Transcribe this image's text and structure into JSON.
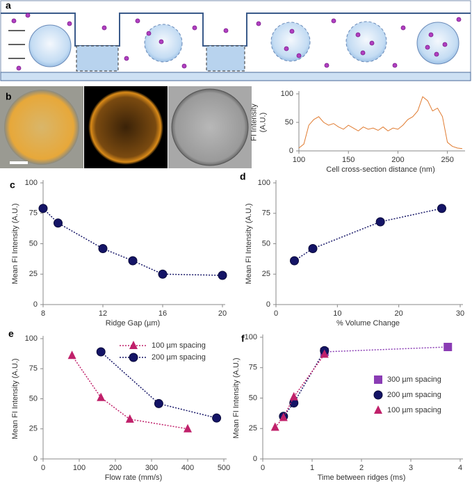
{
  "diagram": {
    "panel": "a"
  },
  "chart_data": [
    {
      "type": "line",
      "panel": "b",
      "ylabel": [
        "FI Intensity",
        "(A.U.)"
      ],
      "xlabel": "Cell cross-section distance (nm)",
      "xlim": [
        100,
        265
      ],
      "ylim": [
        0,
        100
      ],
      "xticks": [
        100,
        150,
        200,
        250
      ],
      "yticks": [
        0,
        50,
        100
      ],
      "series": [
        {
          "color": "#e07b30",
          "marker": "none",
          "x": [
            100,
            105,
            110,
            115,
            120,
            125,
            130,
            135,
            140,
            145,
            150,
            155,
            160,
            165,
            170,
            175,
            180,
            185,
            190,
            195,
            200,
            205,
            210,
            215,
            220,
            225,
            230,
            235,
            240,
            245,
            250,
            255,
            260,
            265
          ],
          "values": [
            5,
            12,
            45,
            55,
            60,
            50,
            45,
            48,
            42,
            38,
            45,
            40,
            35,
            42,
            38,
            40,
            36,
            42,
            35,
            40,
            38,
            45,
            55,
            60,
            70,
            95,
            88,
            70,
            75,
            60,
            15,
            8,
            5,
            4
          ]
        }
      ]
    },
    {
      "type": "line",
      "panel": "c",
      "ylabel": [
        "Mean FI Intensity (A.U.)"
      ],
      "xlabel": "Ridge Gap (µm)",
      "xlim": [
        8,
        20
      ],
      "ylim": [
        0,
        100
      ],
      "xticks": [
        8,
        12,
        16,
        20
      ],
      "yticks": [
        0,
        25,
        50,
        75,
        100
      ],
      "series": [
        {
          "color": "#141466",
          "marker": "circle",
          "x": [
            8,
            9,
            12,
            14,
            16,
            20
          ],
          "values": [
            79,
            67,
            46,
            36,
            25,
            24
          ]
        }
      ]
    },
    {
      "type": "line",
      "panel": "d",
      "ylabel": [
        "Mean FI Intensity (A.U.)"
      ],
      "xlabel": "% Volume Change",
      "xlim": [
        0,
        30
      ],
      "ylim": [
        0,
        100
      ],
      "xticks": [
        0,
        10,
        20,
        30
      ],
      "yticks": [
        0,
        25,
        50,
        75,
        100
      ],
      "series": [
        {
          "color": "#141466",
          "marker": "circle",
          "x": [
            3,
            6,
            17,
            27
          ],
          "values": [
            36,
            46,
            68,
            79
          ]
        }
      ]
    },
    {
      "type": "line",
      "panel": "e",
      "ylabel": [
        "Mean FI Intensity (A.U.)"
      ],
      "xlabel": "Flow rate (mm/s)",
      "legend": "upper center",
      "xlim": [
        0,
        500
      ],
      "ylim": [
        0,
        100
      ],
      "xticks": [
        0,
        100,
        200,
        300,
        400,
        500
      ],
      "yticks": [
        0,
        25,
        50,
        75,
        100
      ],
      "series": [
        {
          "name": "100 µm spacing",
          "color": "#c0206a",
          "marker": "triangle",
          "x": [
            80,
            160,
            240,
            400
          ],
          "values": [
            86,
            51,
            33,
            25
          ]
        },
        {
          "name": "200 µm spacing",
          "color": "#141466",
          "marker": "circle",
          "x": [
            160,
            320,
            480
          ],
          "values": [
            89,
            46,
            34
          ]
        }
      ]
    },
    {
      "type": "line",
      "panel": "f",
      "ylabel": [
        "Mean FI Intensity (A.U.)"
      ],
      "xlabel": "Time between ridges (ms)",
      "legend": "center right",
      "xlim": [
        0,
        4
      ],
      "ylim": [
        0,
        100
      ],
      "xticks": [
        0,
        1,
        2,
        3,
        4
      ],
      "yticks": [
        0,
        25,
        50,
        75,
        100
      ],
      "series": [
        {
          "name": "300 µm spacing",
          "color": "#8a3cb4",
          "marker": "square",
          "x": [
            1.25,
            3.75
          ],
          "values": [
            88,
            92
          ]
        },
        {
          "name": "200 µm spacing",
          "color": "#141466",
          "marker": "circle",
          "x": [
            0.42,
            0.63,
            1.25
          ],
          "values": [
            35,
            46,
            89
          ]
        },
        {
          "name": "100 µm spacing",
          "color": "#c0206a",
          "marker": "triangle",
          "x": [
            0.25,
            0.42,
            0.63,
            1.25
          ],
          "values": [
            26,
            34,
            51,
            86
          ]
        }
      ]
    }
  ]
}
